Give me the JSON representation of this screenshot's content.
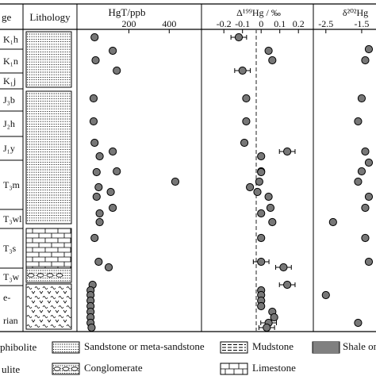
{
  "headers": {
    "age": "ge",
    "lithology": "Lithology",
    "hgt": "HgT/ppb",
    "d199": "Δ¹⁹⁹Hg / ‰",
    "d202": "δ²⁰²Hg"
  },
  "ticks": {
    "hgt": [
      "200",
      "400"
    ],
    "d199": [
      "-0.2",
      "-0.1",
      "0",
      "0.1",
      "0.2"
    ],
    "d202": [
      "-2.5",
      "-1.5"
    ]
  },
  "units": [
    {
      "label": "K₁h"
    },
    {
      "label": "K₁n"
    },
    {
      "label": "K₁j"
    },
    {
      "label": "J₃b"
    },
    {
      "label": "J₂h"
    },
    {
      "label": "J₁y"
    },
    {
      "label": "T₃m"
    },
    {
      "label": "T₃wl"
    },
    {
      "label": "T₃s"
    },
    {
      "label": "T₃w"
    },
    {
      "label": "e-"
    },
    {
      "label": "rian"
    }
  ],
  "legend": {
    "amphibolite": "phibolite",
    "granulite": "ulite",
    "sandstone": "Sandstone or meta-sandstone",
    "conglomerate": "Conglomerate",
    "mudstone": "Mudstone",
    "limestone": "Limestone",
    "shale": "Shale or"
  },
  "chart_data": [
    {
      "type": "scatter",
      "title": "",
      "xlabel": "HgT/ppb",
      "xlim": [
        -30,
        560
      ],
      "samples_y_order": "top-to-bottom",
      "x": [
        30,
        120,
        35,
        140,
        25,
        25,
        30,
        120,
        55,
        140,
        40,
        430,
        50,
        110,
        40,
        120,
        55,
        55,
        30,
        50,
        100,
        20,
        10,
        10,
        10,
        10,
        10,
        10,
        10,
        15
      ]
    },
    {
      "type": "scatter",
      "title": "",
      "xlabel": "Δ199Hg / ‰",
      "xlim": [
        -0.32,
        0.28
      ],
      "x": [
        -0.12,
        0.04,
        0.06,
        -0.1,
        -0.08,
        -0.08,
        -0.09,
        0.14,
        0,
        0,
        0,
        -0.01,
        -0.06,
        -0.02,
        0.04,
        0.05,
        0,
        0.06,
        0,
        0,
        0.12,
        0.14,
        0,
        0,
        0,
        0,
        0.06,
        0.07,
        0.04,
        0.03
      ],
      "error_bars": "present on selected points"
    },
    {
      "type": "scatter",
      "title": "",
      "xlabel": "δ202Hg",
      "xlim": [
        -2.85,
        -1.1
      ],
      "x": [
        -1.3,
        -1.4,
        -1.5,
        -1.6,
        -1.4,
        -1.3,
        -1.5,
        -1.6,
        -1.3,
        -1.4,
        -2.3,
        -1.4,
        -1.3,
        -2.5,
        -1.6
      ]
    }
  ]
}
